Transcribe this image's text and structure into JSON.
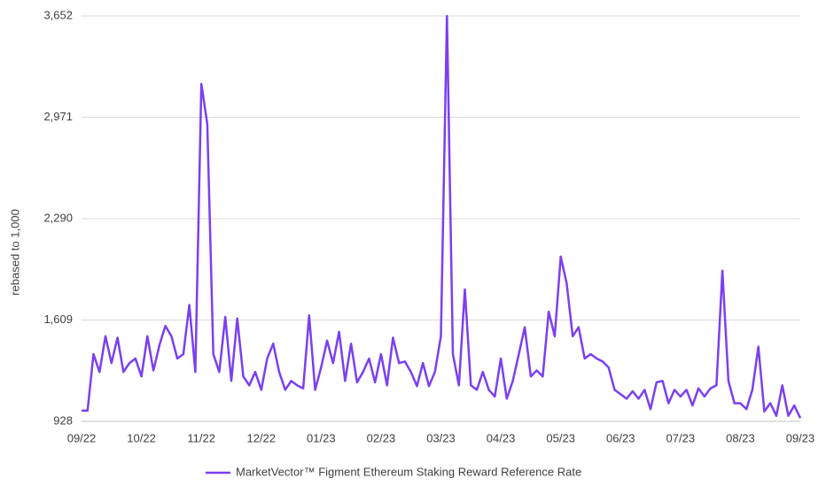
{
  "chart_data": {
    "type": "line",
    "ylabel": "rebased to 1,000",
    "categories": [
      "09/22",
      null,
      null,
      null,
      null,
      null,
      null,
      null,
      null,
      null,
      "10/22",
      null,
      null,
      null,
      null,
      null,
      null,
      null,
      null,
      null,
      "11/22",
      null,
      null,
      null,
      null,
      null,
      null,
      null,
      null,
      null,
      "12/22",
      null,
      null,
      null,
      null,
      null,
      null,
      null,
      null,
      null,
      "01/23",
      null,
      null,
      null,
      null,
      null,
      null,
      null,
      null,
      null,
      "02/23",
      null,
      null,
      null,
      null,
      null,
      null,
      null,
      null,
      null,
      "03/23",
      null,
      null,
      null,
      null,
      null,
      null,
      null,
      null,
      null,
      "04/23",
      null,
      null,
      null,
      null,
      null,
      null,
      null,
      null,
      null,
      "05/23",
      null,
      null,
      null,
      null,
      null,
      null,
      null,
      null,
      null,
      "06/23",
      null,
      null,
      null,
      null,
      null,
      null,
      null,
      null,
      null,
      "07/23",
      null,
      null,
      null,
      null,
      null,
      null,
      null,
      null,
      null,
      "08/23",
      null,
      null,
      null,
      null,
      null,
      null,
      null,
      null,
      null,
      "09/23"
    ],
    "series": [
      {
        "name": "MarketVector™ Figment Ethereum Staking Reward Reference Rate",
        "color": "#7b3ff2",
        "values": [
          1000,
          1000,
          1380,
          1260,
          1500,
          1320,
          1490,
          1260,
          1320,
          1350,
          1230,
          1500,
          1270,
          1440,
          1570,
          1500,
          1350,
          1380,
          1710,
          1260,
          3195,
          2926,
          1380,
          1260,
          1630,
          1200,
          1620,
          1230,
          1170,
          1260,
          1140,
          1350,
          1450,
          1260,
          1140,
          1200,
          1170,
          1150,
          1640,
          1140,
          1290,
          1470,
          1320,
          1530,
          1200,
          1450,
          1190,
          1260,
          1350,
          1190,
          1380,
          1170,
          1490,
          1320,
          1330,
          1260,
          1165,
          1320,
          1165,
          1260,
          1500,
          3652,
          1380,
          1170,
          1814,
          1170,
          1140,
          1260,
          1140,
          1095,
          1350,
          1080,
          1200,
          1380,
          1560,
          1230,
          1270,
          1230,
          1665,
          1500,
          2035,
          1855,
          1500,
          1560,
          1350,
          1380,
          1350,
          1330,
          1290,
          1140,
          1110,
          1080,
          1130,
          1080,
          1140,
          1010,
          1190,
          1200,
          1050,
          1140,
          1095,
          1140,
          1035,
          1150,
          1095,
          1150,
          1170,
          1940,
          1200,
          1050,
          1050,
          1010,
          1140,
          1430,
          995,
          1050,
          965,
          1170,
          965,
          1035,
          950
        ]
      }
    ],
    "ylim": [
      928,
      3652
    ],
    "yticks": [
      {
        "value": 928,
        "label": "928"
      },
      {
        "value": 1609,
        "label": "1,609"
      },
      {
        "value": 2290,
        "label": "2,290"
      },
      {
        "value": 2971,
        "label": "2,971"
      },
      {
        "value": 3652,
        "label": "3,652"
      }
    ],
    "grid": true,
    "legend": "bottom"
  }
}
